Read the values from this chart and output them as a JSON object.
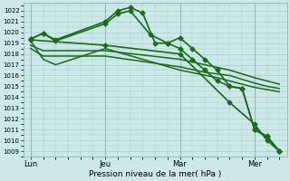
{
  "background_color": "#cce8e8",
  "grid_color": "#aacccc",
  "line_color": "#1a6b1a",
  "xlabel": "Pression niveau de la mer( hPa )",
  "ylim": [
    1008.5,
    1022.7
  ],
  "yticks": [
    1009,
    1010,
    1011,
    1012,
    1013,
    1014,
    1015,
    1016,
    1017,
    1018,
    1019,
    1020,
    1021,
    1022
  ],
  "xtick_labels": [
    "Lun",
    "Jeu",
    "Mar",
    "Mer"
  ],
  "xtick_positions": [
    0,
    3,
    6,
    9
  ],
  "vline_positions": [
    0,
    3,
    6,
    9
  ],
  "series": [
    {
      "x": [
        0,
        0.5,
        1.0,
        3.0,
        3.5,
        4.0,
        4.5,
        5.0,
        5.5,
        6.0,
        6.5,
        7.0,
        7.5,
        8.0,
        8.5,
        9.0,
        9.5,
        10.0
      ],
      "y": [
        1019.4,
        1019.9,
        1019.3,
        1021.0,
        1022.0,
        1022.3,
        1021.8,
        1019.0,
        1019.0,
        1019.5,
        1018.5,
        1017.5,
        1016.5,
        1015.0,
        1014.8,
        1011.0,
        1010.3,
        1009.0
      ],
      "marker": "D",
      "ms": 2.5,
      "lw": 1.2
    },
    {
      "x": [
        0,
        0.5,
        1.0,
        3.0,
        3.5,
        4.0,
        4.8,
        5.5,
        6.0,
        6.5,
        7.0,
        7.5,
        8.0,
        8.5,
        9.0,
        9.5,
        10.0
      ],
      "y": [
        1019.4,
        1019.9,
        1019.2,
        1020.8,
        1021.7,
        1022.0,
        1019.8,
        1019.0,
        1018.5,
        1017.5,
        1016.5,
        1015.5,
        1015.0,
        1014.8,
        1011.0,
        1010.4,
        1009.0
      ],
      "marker": "D",
      "ms": 2.5,
      "lw": 1.2
    },
    {
      "x": [
        0,
        0.5,
        3.0,
        6.0,
        7.0,
        8.0,
        9.0,
        9.5,
        10.0
      ],
      "y": [
        1018.8,
        1018.3,
        1018.3,
        1017.5,
        1017.0,
        1016.5,
        1015.8,
        1015.5,
        1015.2
      ],
      "marker": null,
      "ms": 0,
      "lw": 1.1
    },
    {
      "x": [
        0,
        0.5,
        3.0,
        6.0,
        7.0,
        8.0,
        9.0,
        9.5,
        10.0
      ],
      "y": [
        1018.5,
        1017.8,
        1017.8,
        1016.8,
        1016.3,
        1016.0,
        1015.3,
        1015.0,
        1014.8
      ],
      "marker": null,
      "ms": 0,
      "lw": 1.1
    },
    {
      "x": [
        0,
        0.5,
        1.0,
        3.0,
        6.0,
        7.5,
        8.5,
        9.0,
        9.5,
        10.0
      ],
      "y": [
        1019.2,
        1017.5,
        1017.0,
        1018.5,
        1016.5,
        1015.8,
        1015.2,
        1014.9,
        1014.7,
        1014.5
      ],
      "marker": null,
      "ms": 0,
      "lw": 1.1
    },
    {
      "x": [
        0,
        3.0,
        6.0,
        8.0,
        9.0,
        9.5,
        10.0
      ],
      "y": [
        1019.3,
        1018.8,
        1018.0,
        1013.5,
        1011.5,
        1010.0,
        1009.0
      ],
      "marker": "D",
      "ms": 2.5,
      "lw": 1.2
    }
  ]
}
